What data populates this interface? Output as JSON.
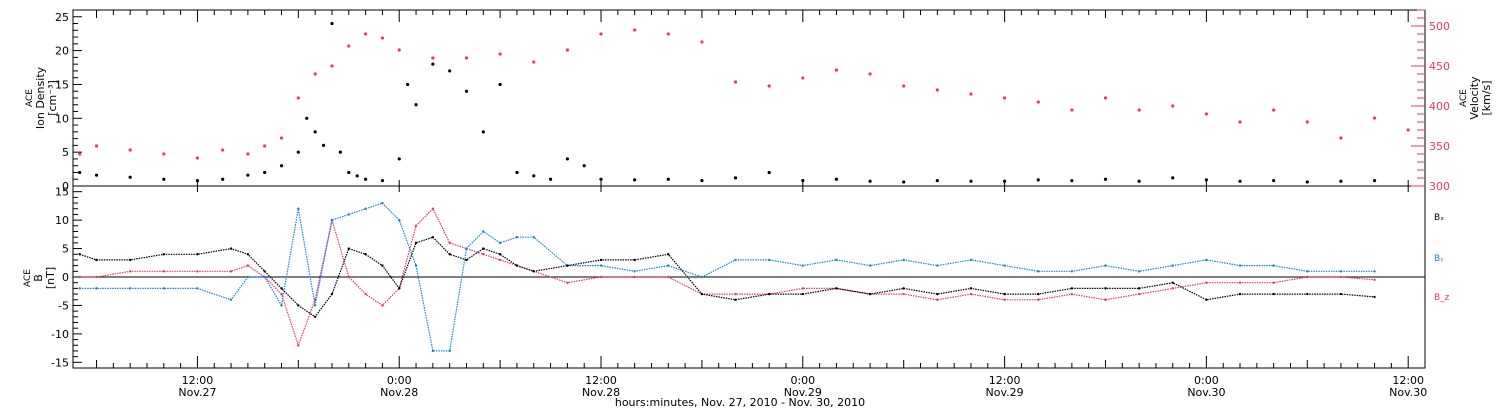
{
  "figure": {
    "xlabel": "hours:minutes, Nov. 27, 2010 - Nov. 30, 2010",
    "x_axis": {
      "ticks": [
        {
          "t": 12,
          "time": "12:00",
          "date": "Nov.27"
        },
        {
          "t": 24,
          "time": "0:00",
          "date": "Nov.28"
        },
        {
          "t": 36,
          "time": "12:00",
          "date": "Nov.28"
        },
        {
          "t": 48,
          "time": "0:00",
          "date": "Nov.29"
        },
        {
          "t": 60,
          "time": "12:00",
          "date": "Nov.29"
        },
        {
          "t": 72,
          "time": "0:00",
          "date": "Nov.30"
        },
        {
          "t": 84,
          "time": "12:00",
          "date": "Nov.30"
        }
      ]
    },
    "colors": {
      "density": "#000000",
      "velocity": "#e8386a",
      "bx": "#000000",
      "by": "#1a82e0",
      "bz": "#e8386a"
    }
  },
  "chart_data": [
    {
      "type": "scatter",
      "panel": "top",
      "xlim_hours": [
        4.6,
        85
      ],
      "left_axis": {
        "label_lines": [
          "ACE",
          "Ion Density",
          "[cm⁻³]"
        ],
        "ylim": [
          0,
          26
        ],
        "ticks": [
          0,
          5,
          10,
          15,
          20,
          25
        ]
      },
      "right_axis": {
        "label_lines": [
          "ACE",
          "Velocity",
          "[km/s]"
        ],
        "ylim": [
          300,
          520
        ],
        "ticks": [
          300,
          350,
          400,
          450,
          500
        ]
      },
      "series": [
        {
          "key": "density",
          "axis": "left",
          "x": [
            5,
            6,
            8,
            10,
            12,
            13.5,
            15,
            16,
            17,
            18,
            18.5,
            19,
            19.5,
            20,
            20.5,
            21,
            21.5,
            22,
            23,
            24,
            24.5,
            25,
            26,
            27,
            28,
            29,
            30,
            31,
            32,
            33,
            34,
            35,
            36,
            38,
            40,
            42,
            44,
            46,
            48,
            50,
            52,
            54,
            56,
            58,
            60,
            62,
            64,
            66,
            68,
            70,
            72,
            74,
            76,
            78,
            80,
            82
          ],
          "y": [
            2.0,
            1.6,
            1.3,
            1.0,
            0.8,
            1.0,
            1.6,
            2.0,
            3.0,
            5.0,
            10,
            8,
            6,
            24,
            5,
            2,
            1.5,
            1.0,
            0.8,
            4,
            15,
            12,
            18,
            17,
            14,
            8,
            15,
            2,
            1.5,
            1,
            4,
            3,
            1,
            0.9,
            1.0,
            0.8,
            1.2,
            2,
            0.8,
            1.0,
            0.7,
            0.6,
            0.8,
            0.7,
            0.7,
            0.9,
            0.8,
            1.0,
            0.7,
            1.2,
            0.9,
            0.7,
            0.8,
            0.6,
            0.7,
            0.8
          ]
        },
        {
          "key": "velocity",
          "axis": "right",
          "x": [
            5,
            6,
            8,
            10,
            12,
            13.5,
            15,
            16,
            17,
            18,
            19,
            20,
            21,
            22,
            23,
            24,
            26,
            28,
            30,
            32,
            34,
            36,
            38,
            40,
            42,
            44,
            46,
            48,
            50,
            52,
            54,
            56,
            58,
            60,
            62,
            64,
            66,
            68,
            70,
            72,
            74,
            76,
            78,
            80,
            82,
            84
          ],
          "y": [
            340,
            350,
            345,
            340,
            335,
            345,
            340,
            350,
            360,
            410,
            440,
            450,
            475,
            490,
            485,
            470,
            460,
            460,
            465,
            455,
            470,
            490,
            495,
            490,
            480,
            430,
            425,
            435,
            445,
            440,
            425,
            420,
            415,
            410,
            405,
            395,
            410,
            395,
            400,
            390,
            380,
            395,
            380,
            360,
            385,
            370
          ]
        }
      ]
    },
    {
      "type": "line",
      "panel": "bottom",
      "xlim_hours": [
        4.6,
        85
      ],
      "left_axis": {
        "label_lines": [
          "ACE",
          "B",
          "[nT]"
        ],
        "ylim": [
          -16,
          16
        ],
        "ticks": [
          -15,
          -10,
          -5,
          0,
          5,
          10,
          15
        ]
      },
      "legend": {
        "placement": "right",
        "entries": [
          "Bₓ",
          "Bᵧ",
          "B_z"
        ]
      },
      "series": [
        {
          "key": "bx",
          "x": [
            5,
            6,
            8,
            10,
            12,
            14,
            15,
            16,
            17,
            18,
            19,
            20,
            21,
            22,
            23,
            24,
            25,
            26,
            27,
            28,
            29,
            30,
            31,
            32,
            34,
            36,
            38,
            40,
            42,
            44,
            46,
            48,
            50,
            52,
            54,
            56,
            58,
            60,
            62,
            64,
            66,
            68,
            70,
            72,
            74,
            76,
            78,
            80,
            82
          ],
          "y": [
            4,
            3,
            3,
            4,
            4,
            5,
            4,
            1,
            -2,
            -5,
            -7,
            -3,
            5,
            4,
            2,
            -2,
            6,
            7,
            4,
            3,
            5,
            4,
            2,
            1,
            2,
            3,
            3,
            4,
            -3,
            -4,
            -3,
            -3,
            -2,
            -3,
            -2,
            -3,
            -2,
            -3,
            -3,
            -2,
            -2,
            -2,
            -1,
            -4,
            -3,
            -3,
            -3,
            -3,
            -3.5
          ]
        },
        {
          "key": "by",
          "x": [
            5,
            6,
            8,
            10,
            12,
            14,
            15,
            16,
            17,
            18,
            19,
            20,
            21,
            22,
            23,
            24,
            25,
            26,
            27,
            28,
            29,
            30,
            31,
            32,
            34,
            36,
            38,
            40,
            42,
            44,
            46,
            48,
            50,
            52,
            54,
            56,
            58,
            60,
            62,
            64,
            66,
            68,
            70,
            72,
            74,
            76,
            78,
            80,
            82
          ],
          "y": [
            -2,
            -2,
            -2,
            -2,
            -2,
            -4,
            0,
            0,
            -5,
            12,
            -5,
            10,
            11,
            12,
            13,
            10,
            2,
            -13,
            -13,
            5,
            8,
            6,
            7,
            7,
            2,
            2,
            1,
            2,
            0,
            3,
            3,
            2,
            3,
            2,
            3,
            2,
            3,
            2,
            1,
            1,
            2,
            1,
            2,
            3,
            2,
            2,
            1,
            1,
            1
          ]
        },
        {
          "key": "bz",
          "x": [
            5,
            6,
            8,
            10,
            12,
            14,
            15,
            16,
            17,
            18,
            19,
            20,
            21,
            22,
            23,
            24,
            25,
            26,
            27,
            28,
            29,
            30,
            31,
            32,
            34,
            36,
            38,
            40,
            42,
            44,
            46,
            48,
            50,
            52,
            54,
            56,
            58,
            60,
            62,
            64,
            66,
            68,
            70,
            72,
            74,
            76,
            78,
            80,
            82
          ],
          "y": [
            0,
            0,
            1,
            1,
            1,
            1,
            2,
            0,
            -3,
            -12,
            -4,
            10,
            0,
            -3,
            -5,
            -2,
            9,
            12,
            6,
            5,
            4,
            3,
            2,
            1,
            -1,
            0,
            0,
            0,
            -3,
            -3,
            -3,
            -2,
            -2,
            -3,
            -3,
            -4,
            -3,
            -4,
            -4,
            -3,
            -4,
            -3,
            -2,
            -1,
            -1,
            -1,
            0,
            0,
            -0.5
          ]
        }
      ]
    }
  ]
}
